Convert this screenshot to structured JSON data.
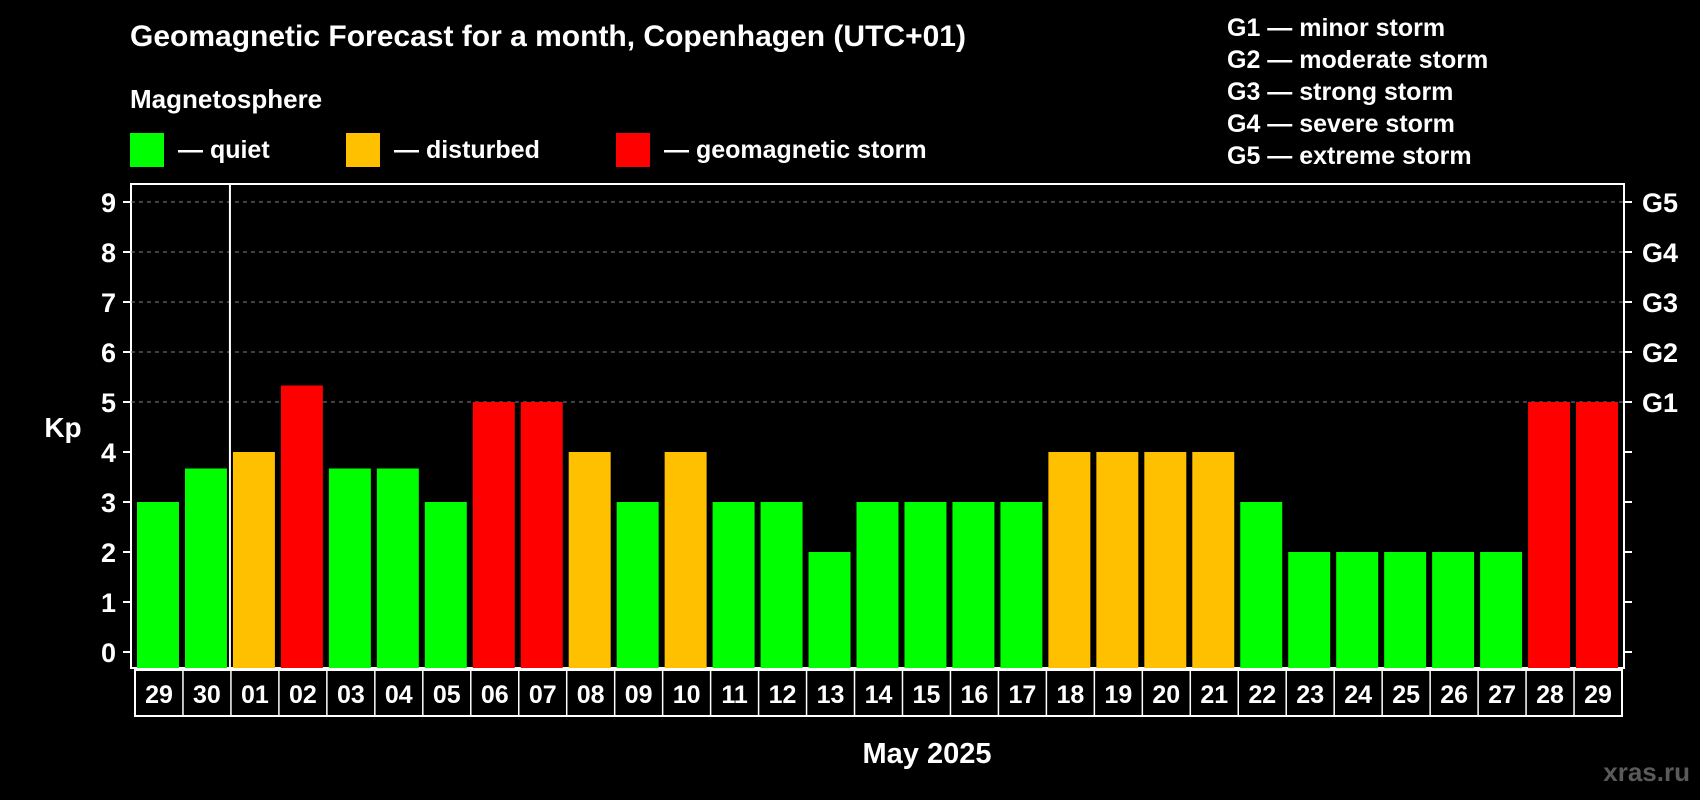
{
  "title": "Geomagnetic Forecast for a month, Copenhagen (UTC+01)",
  "legend": {
    "heading": "Magnetosphere",
    "items": [
      {
        "label": "— quiet",
        "color": "#00ff00"
      },
      {
        "label": "— disturbed",
        "color": "#ffc000"
      },
      {
        "label": "— geomagnetic storm",
        "color": "#ff0000"
      }
    ]
  },
  "storm_levels": [
    "G1 — minor storm",
    "G2 — moderate storm",
    "G3 — strong storm",
    "G4 — severe storm",
    "G5 — extreme storm"
  ],
  "watermark": "xras.ru",
  "chart_data": {
    "type": "bar",
    "ylabel": "Kp",
    "xlabel": "May 2025",
    "ylim": [
      0,
      9
    ],
    "yticks": [
      0,
      1,
      2,
      3,
      4,
      5,
      6,
      7,
      8,
      9
    ],
    "grid": "dashed horizontal at 5, 6, 7, 8, 9",
    "right_axis_labels": [
      {
        "kp": 5,
        "label": "G1"
      },
      {
        "kp": 6,
        "label": "G2"
      },
      {
        "kp": 7,
        "label": "G3"
      },
      {
        "kp": 8,
        "label": "G4"
      },
      {
        "kp": 9,
        "label": "G5"
      }
    ],
    "month_boundary_after_index": 1,
    "categories": [
      "29",
      "30",
      "01",
      "02",
      "03",
      "04",
      "05",
      "06",
      "07",
      "08",
      "09",
      "10",
      "11",
      "12",
      "13",
      "14",
      "15",
      "16",
      "17",
      "18",
      "19",
      "20",
      "21",
      "22",
      "23",
      "24",
      "25",
      "26",
      "27",
      "28",
      "29"
    ],
    "values": [
      3,
      3.67,
      4,
      5.33,
      3.67,
      3.67,
      3,
      5,
      5,
      4,
      3,
      4,
      3,
      3,
      2,
      3,
      3,
      3,
      3,
      4,
      4,
      4,
      4,
      3,
      2,
      2,
      2,
      2,
      2,
      5,
      5
    ],
    "colors": {
      "quiet": "#00ff00",
      "disturbed": "#ffc000",
      "storm": "#ff0000"
    }
  }
}
